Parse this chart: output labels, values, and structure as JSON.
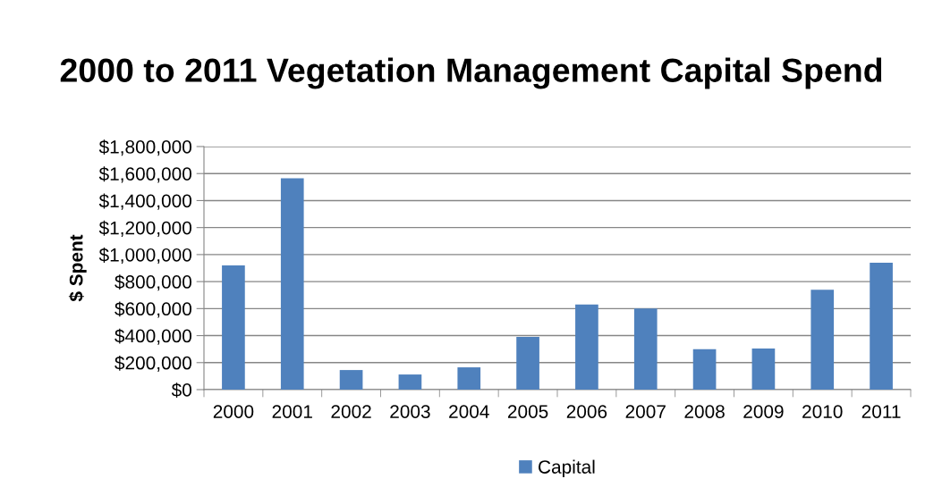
{
  "chart_data": {
    "type": "bar",
    "title": "2000 to 2011 Vegetation Management Capital Spend",
    "ylabel": "$ Spent",
    "categories": [
      "2000",
      "2001",
      "2002",
      "2003",
      "2004",
      "2005",
      "2006",
      "2007",
      "2008",
      "2009",
      "2010",
      "2011"
    ],
    "series": [
      {
        "name": "Capital",
        "color": "#4f81bd",
        "values": [
          920000,
          1565000,
          145000,
          112000,
          165000,
          390000,
          630000,
          600000,
          300000,
          305000,
          740000,
          940000
        ]
      }
    ],
    "ylim": [
      0,
      1800000
    ],
    "yticks": [
      {
        "value": 0,
        "label": "$0"
      },
      {
        "value": 200000,
        "label": "$200,000"
      },
      {
        "value": 400000,
        "label": "$400,000"
      },
      {
        "value": 600000,
        "label": "$600,000"
      },
      {
        "value": 800000,
        "label": "$800,000"
      },
      {
        "value": 1000000,
        "label": "$1,000,000"
      },
      {
        "value": 1200000,
        "label": "$1,200,000"
      },
      {
        "value": 1400000,
        "label": "$1,400,000"
      },
      {
        "value": 1600000,
        "label": "$1,600,000"
      },
      {
        "value": 1800000,
        "label": "$1,800,000"
      }
    ],
    "grid": "y",
    "legend": "bottom"
  }
}
